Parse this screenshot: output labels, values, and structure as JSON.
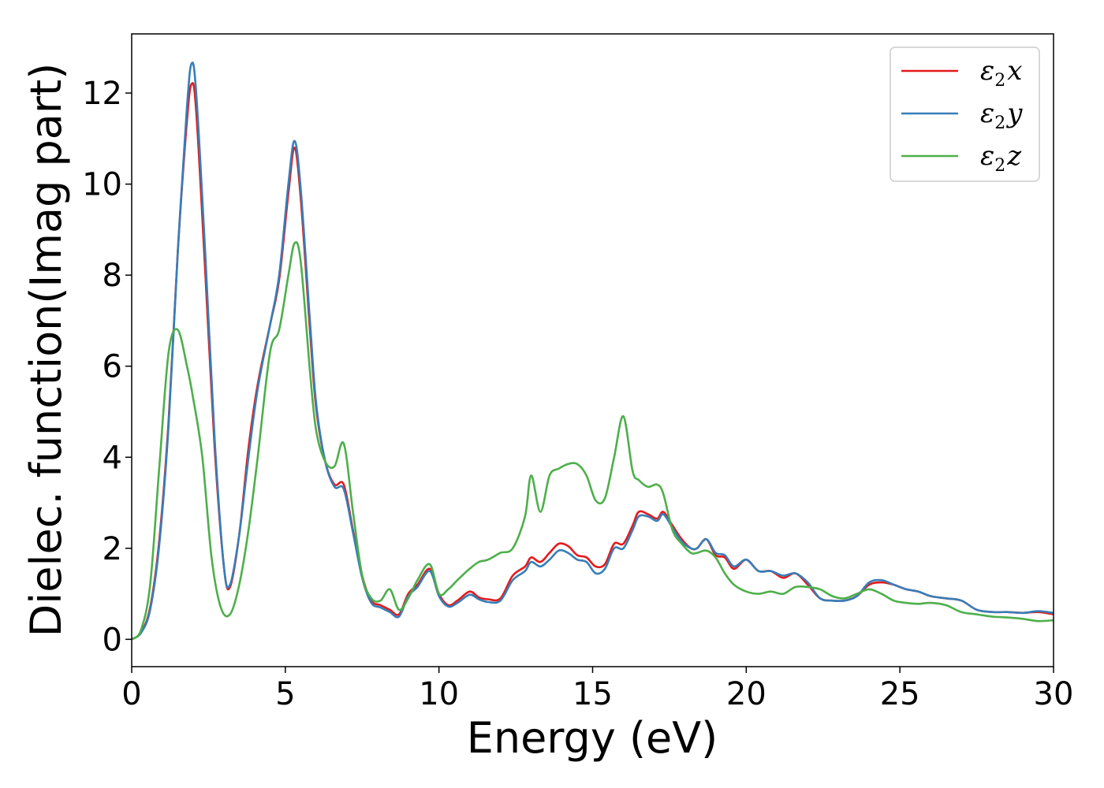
{
  "chart_data": {
    "type": "line",
    "xlabel": "Energy (eV)",
    "ylabel": "Dielec. function(Imag part)",
    "xlim": [
      0,
      30
    ],
    "ylim": [
      -0.6,
      13.3
    ],
    "xticks": [
      0,
      5,
      10,
      15,
      20,
      25,
      30
    ],
    "xtick_labels": [
      "0",
      "5",
      "10",
      "15",
      "20",
      "25",
      "30"
    ],
    "yticks": [
      0,
      2,
      4,
      6,
      8,
      10,
      12
    ],
    "ytick_labels": [
      "0",
      "2",
      "4",
      "6",
      "8",
      "10",
      "12"
    ],
    "grid": false,
    "legend_position": "top-right",
    "series": [
      {
        "name": "ε₂x",
        "legend_base": "ε",
        "legend_sub": "2",
        "legend_var": "x",
        "color": "#e41a1c",
        "x": [
          0,
          0.3,
          0.6,
          0.9,
          1.2,
          1.5,
          1.8,
          1.95,
          2.1,
          2.4,
          2.7,
          3.0,
          3.2,
          3.5,
          3.8,
          4.1,
          4.5,
          4.8,
          5.1,
          5.3,
          5.5,
          5.8,
          6.0,
          6.3,
          6.6,
          6.9,
          7.2,
          7.5,
          7.8,
          8.1,
          8.4,
          8.7,
          9.0,
          9.3,
          9.7,
          10.0,
          10.3,
          10.6,
          11.0,
          11.3,
          11.6,
          12.0,
          12.4,
          12.8,
          13.0,
          13.3,
          13.6,
          13.9,
          14.2,
          14.5,
          14.8,
          15.1,
          15.4,
          15.7,
          16.0,
          16.3,
          16.5,
          16.8,
          17.1,
          17.3,
          17.6,
          17.9,
          18.2,
          18.4,
          18.7,
          19.0,
          19.3,
          19.6,
          20.0,
          20.4,
          20.8,
          21.2,
          21.6,
          22.0,
          22.4,
          22.8,
          23.2,
          23.6,
          24.0,
          24.4,
          24.8,
          25.2,
          25.6,
          26.0,
          26.5,
          27.0,
          27.5,
          28.0,
          28.5,
          29.0,
          29.5,
          30.0
        ],
        "values": [
          0,
          0.15,
          0.7,
          2.2,
          4.8,
          8.5,
          11.4,
          12.2,
          11.6,
          8.0,
          4.2,
          1.6,
          1.15,
          2.3,
          4.2,
          5.6,
          6.9,
          7.9,
          9.8,
          10.8,
          9.7,
          6.8,
          5.1,
          3.9,
          3.4,
          3.4,
          2.4,
          1.4,
          0.85,
          0.75,
          0.65,
          0.55,
          1.0,
          1.2,
          1.55,
          1.0,
          0.75,
          0.85,
          1.05,
          0.92,
          0.88,
          0.9,
          1.4,
          1.6,
          1.8,
          1.7,
          1.9,
          2.1,
          2.05,
          1.85,
          1.8,
          1.6,
          1.65,
          2.1,
          2.1,
          2.5,
          2.8,
          2.75,
          2.65,
          2.8,
          2.5,
          2.2,
          2.0,
          2.0,
          2.2,
          1.85,
          1.8,
          1.55,
          1.75,
          1.5,
          1.5,
          1.35,
          1.45,
          1.2,
          0.9,
          0.85,
          0.85,
          0.95,
          1.2,
          1.25,
          1.2,
          1.1,
          1.05,
          0.95,
          0.9,
          0.85,
          0.65,
          0.6,
          0.6,
          0.58,
          0.6,
          0.55
        ]
      },
      {
        "name": "ε₂y",
        "legend_base": "ε",
        "legend_sub": "2",
        "legend_var": "y",
        "color": "#377eb8",
        "x": [
          0,
          0.3,
          0.6,
          0.9,
          1.2,
          1.5,
          1.8,
          1.95,
          2.1,
          2.4,
          2.7,
          3.0,
          3.2,
          3.5,
          3.8,
          4.1,
          4.5,
          4.8,
          5.1,
          5.3,
          5.5,
          5.8,
          6.0,
          6.3,
          6.6,
          6.9,
          7.2,
          7.5,
          7.8,
          8.1,
          8.4,
          8.7,
          9.0,
          9.3,
          9.7,
          10.0,
          10.3,
          10.6,
          11.0,
          11.3,
          11.6,
          12.0,
          12.4,
          12.8,
          13.0,
          13.3,
          13.6,
          13.9,
          14.2,
          14.5,
          14.8,
          15.1,
          15.4,
          15.7,
          16.0,
          16.3,
          16.5,
          16.8,
          17.1,
          17.3,
          17.6,
          17.9,
          18.2,
          18.4,
          18.7,
          19.0,
          19.3,
          19.6,
          20.0,
          20.4,
          20.8,
          21.2,
          21.6,
          22.0,
          22.4,
          22.8,
          23.2,
          23.6,
          24.0,
          24.4,
          24.8,
          25.2,
          25.6,
          26.0,
          26.5,
          27.0,
          27.5,
          28.0,
          28.5,
          29.0,
          29.5,
          30.0
        ],
        "values": [
          0,
          0.14,
          0.65,
          2.1,
          4.7,
          8.5,
          11.7,
          12.65,
          12.0,
          8.4,
          4.4,
          1.6,
          1.2,
          2.3,
          4.0,
          5.5,
          6.9,
          8.0,
          10.0,
          10.95,
          9.9,
          7.0,
          5.2,
          3.9,
          3.35,
          3.3,
          2.35,
          1.35,
          0.8,
          0.7,
          0.6,
          0.5,
          0.95,
          1.15,
          1.5,
          0.95,
          0.72,
          0.8,
          0.98,
          0.88,
          0.82,
          0.85,
          1.3,
          1.5,
          1.7,
          1.6,
          1.75,
          1.95,
          1.9,
          1.75,
          1.7,
          1.45,
          1.55,
          2.0,
          2.0,
          2.4,
          2.7,
          2.7,
          2.6,
          2.75,
          2.45,
          2.15,
          2.0,
          2.0,
          2.2,
          1.9,
          1.85,
          1.6,
          1.75,
          1.5,
          1.5,
          1.4,
          1.45,
          1.25,
          0.9,
          0.85,
          0.85,
          0.95,
          1.25,
          1.3,
          1.2,
          1.1,
          1.05,
          0.95,
          0.9,
          0.85,
          0.65,
          0.6,
          0.6,
          0.58,
          0.62,
          0.58
        ]
      },
      {
        "name": "ε₂z",
        "legend_base": "ε",
        "legend_sub": "2",
        "legend_var": "z",
        "color": "#4daf4a",
        "x": [
          0,
          0.3,
          0.6,
          0.9,
          1.2,
          1.5,
          1.8,
          2.0,
          2.3,
          2.6,
          2.9,
          3.2,
          3.5,
          3.8,
          4.1,
          4.5,
          4.8,
          5.1,
          5.3,
          5.5,
          5.8,
          6.0,
          6.3,
          6.6,
          6.9,
          7.2,
          7.5,
          7.8,
          8.1,
          8.4,
          8.7,
          9.0,
          9.3,
          9.7,
          10.0,
          10.3,
          10.6,
          11.0,
          11.3,
          11.6,
          12.0,
          12.4,
          12.8,
          13.0,
          13.3,
          13.6,
          13.9,
          14.2,
          14.5,
          14.8,
          15.1,
          15.4,
          15.7,
          16.0,
          16.3,
          16.5,
          16.8,
          17.1,
          17.3,
          17.6,
          17.9,
          18.2,
          18.4,
          18.7,
          19.0,
          19.3,
          19.6,
          20.0,
          20.4,
          20.8,
          21.2,
          21.6,
          22.0,
          22.4,
          22.8,
          23.2,
          23.6,
          24.0,
          24.4,
          24.8,
          25.2,
          25.6,
          26.0,
          26.5,
          27.0,
          27.5,
          28.0,
          28.5,
          29.0,
          29.5,
          30.0
        ],
        "values": [
          0,
          0.2,
          1.2,
          3.8,
          6.3,
          6.8,
          6.0,
          5.3,
          4.0,
          1.8,
          0.7,
          0.55,
          1.2,
          2.4,
          4.0,
          6.3,
          6.8,
          8.0,
          8.7,
          8.3,
          5.9,
          4.6,
          3.9,
          3.8,
          4.3,
          2.8,
          1.4,
          0.9,
          0.85,
          1.1,
          0.65,
          0.9,
          1.3,
          1.65,
          1.0,
          1.1,
          1.3,
          1.55,
          1.7,
          1.75,
          1.9,
          2.0,
          2.7,
          3.6,
          2.8,
          3.6,
          3.75,
          3.85,
          3.85,
          3.6,
          3.05,
          3.1,
          4.0,
          4.9,
          3.7,
          3.5,
          3.35,
          3.4,
          3.2,
          2.4,
          2.1,
          1.9,
          1.9,
          1.95,
          1.8,
          1.45,
          1.2,
          1.05,
          1.0,
          1.05,
          1.0,
          1.15,
          1.15,
          1.1,
          0.95,
          0.9,
          1.0,
          1.1,
          1.0,
          0.85,
          0.8,
          0.78,
          0.8,
          0.75,
          0.6,
          0.55,
          0.5,
          0.48,
          0.45,
          0.4,
          0.42
        ]
      }
    ]
  }
}
